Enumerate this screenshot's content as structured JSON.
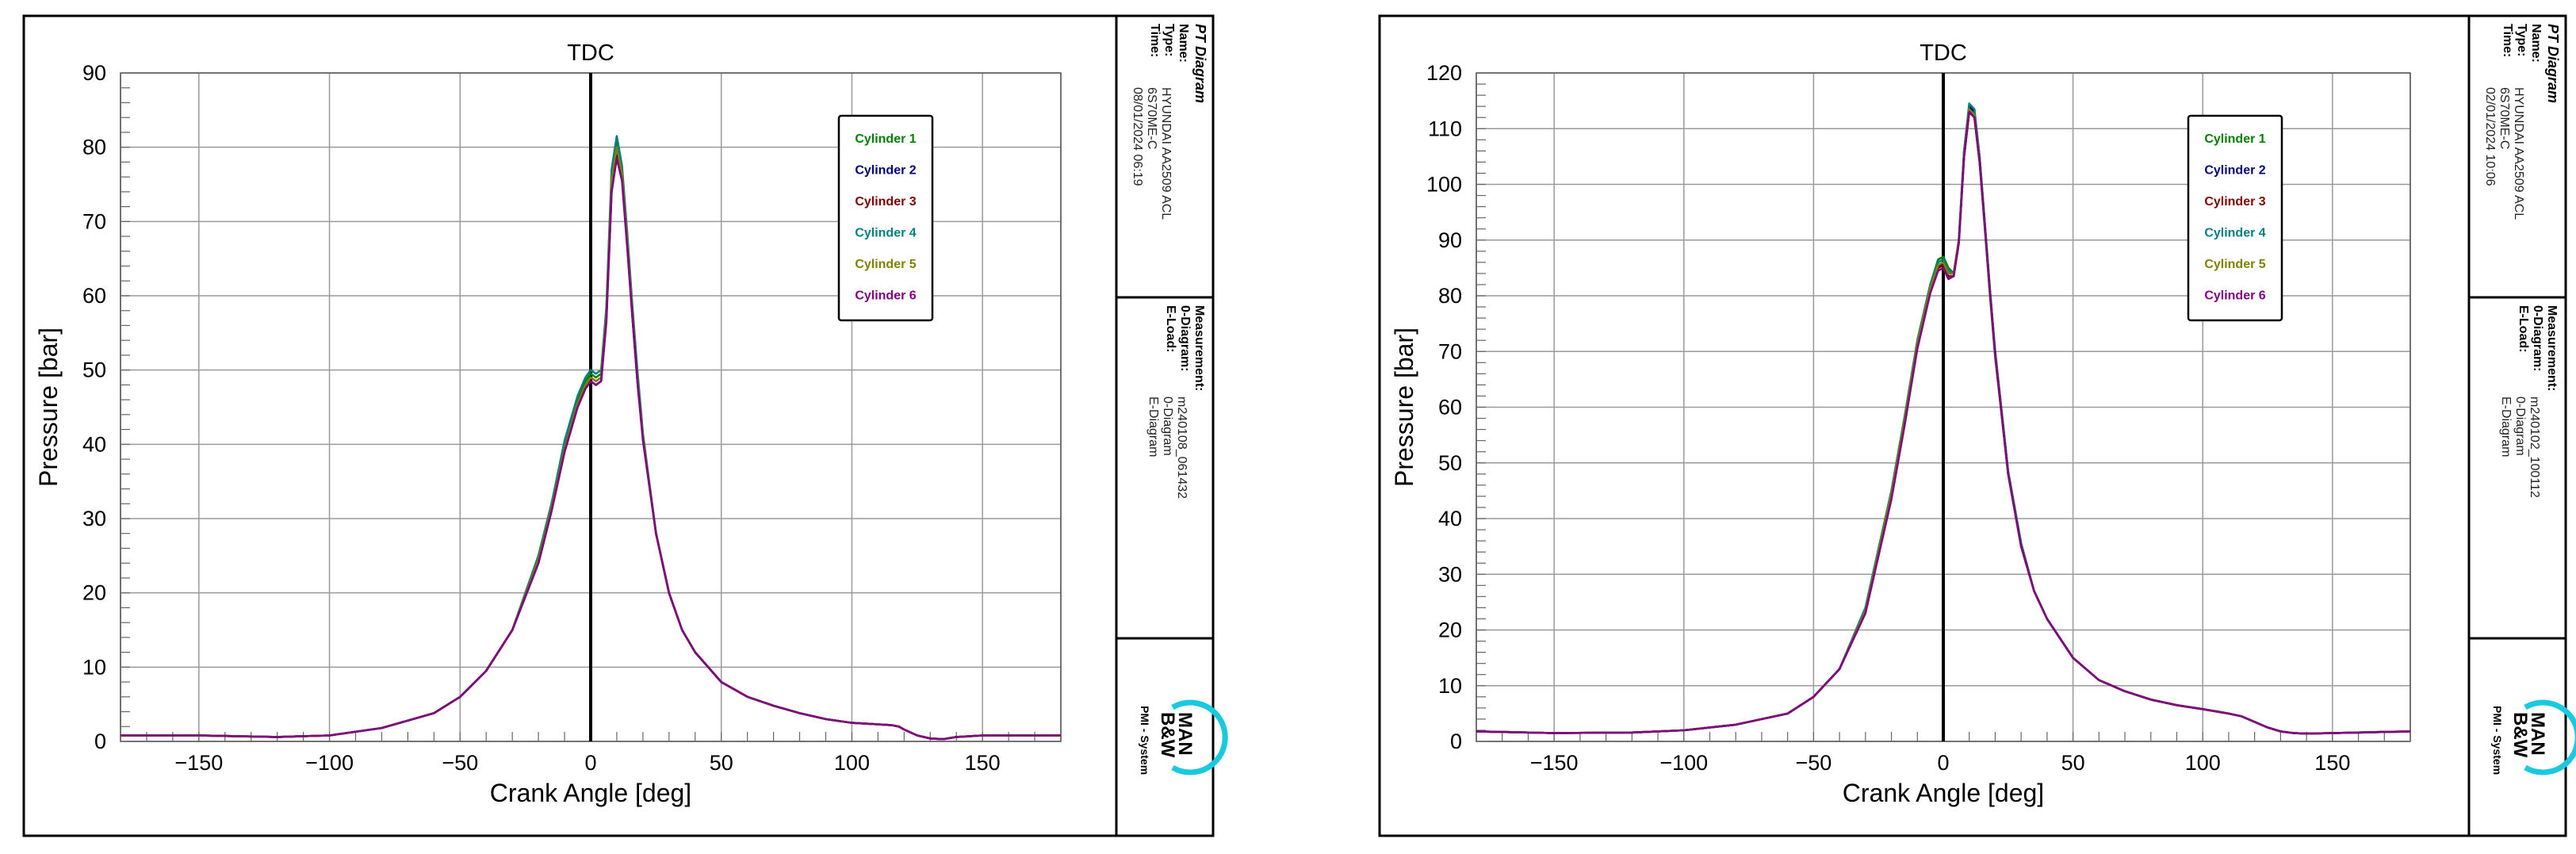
{
  "chart_data": [
    {
      "type": "line",
      "marker": "TDC",
      "xlabel": "Crank Angle [deg]",
      "ylabel": "Pressure [bar]",
      "xlim": [
        -180,
        180
      ],
      "ylim": [
        0,
        90
      ],
      "xticks": [
        -150,
        -100,
        -50,
        0,
        50,
        100,
        150
      ],
      "yticks": [
        0,
        10,
        20,
        30,
        40,
        50,
        60,
        70,
        80,
        90
      ],
      "grid": true,
      "legend_position": "top-right",
      "x": [
        -180,
        -150,
        -120,
        -100,
        -80,
        -60,
        -50,
        -40,
        -30,
        -20,
        -15,
        -10,
        -5,
        -2,
        0,
        2,
        4,
        6,
        8,
        10,
        12,
        14,
        16,
        18,
        20,
        25,
        30,
        35,
        40,
        50,
        60,
        70,
        80,
        90,
        100,
        110,
        115,
        118,
        120,
        125,
        130,
        135,
        140,
        150,
        160,
        170,
        180
      ],
      "series": [
        {
          "name": "Cylinder 1",
          "color": "#008000",
          "y": [
            0.8,
            0.8,
            0.6,
            0.8,
            1.8,
            3.8,
            6,
            9.5,
            15,
            25,
            32,
            40,
            46,
            48.5,
            49.5,
            49,
            49.5,
            58,
            76,
            81,
            77,
            68,
            58,
            49,
            41,
            28,
            20,
            15,
            12,
            8,
            6,
            4.8,
            3.8,
            3,
            2.5,
            2.3,
            2.2,
            2.0,
            1.6,
            0.8,
            0.4,
            0.3,
            0.6,
            0.8,
            0.8,
            0.8,
            0.8
          ]
        },
        {
          "name": "Cylinder 2",
          "color": "#000080",
          "y": [
            0.8,
            0.8,
            0.6,
            0.8,
            1.8,
            3.8,
            6,
            9.5,
            15,
            24,
            31,
            39,
            45,
            47.5,
            48.5,
            48,
            48.5,
            57,
            74,
            79,
            76,
            67,
            57,
            48,
            41,
            28,
            20,
            15,
            12,
            8,
            6,
            4.8,
            3.8,
            3,
            2.5,
            2.3,
            2.2,
            2.0,
            1.6,
            0.8,
            0.4,
            0.3,
            0.6,
            0.8,
            0.8,
            0.8,
            0.8
          ]
        },
        {
          "name": "Cylinder 3",
          "color": "#800000",
          "y": [
            0.8,
            0.8,
            0.6,
            0.8,
            1.8,
            3.8,
            6,
            9.5,
            15,
            24.5,
            31.5,
            39.5,
            45.5,
            48,
            49,
            48.5,
            49,
            57.5,
            75,
            80,
            76.5,
            67.5,
            57.5,
            48.5,
            41,
            28,
            20,
            15,
            12,
            8,
            6,
            4.8,
            3.8,
            3,
            2.5,
            2.3,
            2.2,
            2.0,
            1.6,
            0.8,
            0.4,
            0.3,
            0.6,
            0.8,
            0.8,
            0.8,
            0.8
          ]
        },
        {
          "name": "Cylinder 4",
          "color": "#008080",
          "y": [
            0.8,
            0.8,
            0.6,
            0.8,
            1.8,
            3.8,
            6,
            9.5,
            15,
            25,
            32,
            40.5,
            46.5,
            49,
            50,
            49.5,
            50,
            58.5,
            77,
            81.5,
            77.5,
            68.5,
            58.5,
            49.5,
            41.5,
            28,
            20,
            15,
            12,
            8,
            6,
            4.8,
            3.8,
            3,
            2.5,
            2.3,
            2.2,
            2.0,
            1.6,
            0.8,
            0.4,
            0.3,
            0.6,
            0.8,
            0.8,
            0.8,
            0.8
          ]
        },
        {
          "name": "Cylinder 5",
          "color": "#808000",
          "y": [
            0.8,
            0.8,
            0.6,
            0.8,
            1.8,
            3.8,
            6,
            9.5,
            15,
            24.5,
            31.5,
            39.5,
            45.5,
            48,
            49,
            48.5,
            49,
            57.5,
            75.5,
            80,
            76.5,
            67.5,
            57.5,
            48.5,
            41,
            28,
            20,
            15,
            12,
            8,
            6,
            4.8,
            3.8,
            3,
            2.5,
            2.3,
            2.2,
            2.0,
            1.6,
            0.8,
            0.4,
            0.3,
            0.6,
            0.8,
            0.8,
            0.8,
            0.8
          ]
        },
        {
          "name": "Cylinder 6",
          "color": "#800080",
          "y": [
            0.8,
            0.8,
            0.6,
            0.8,
            1.8,
            3.8,
            6,
            9.5,
            15,
            24,
            31,
            39,
            45,
            47.5,
            48.5,
            48,
            48.5,
            56.5,
            74,
            78.5,
            75.5,
            66.5,
            57,
            48,
            40.5,
            28,
            20,
            15,
            12,
            8,
            6,
            4.8,
            3.8,
            3,
            2.5,
            2.3,
            2.2,
            2.0,
            1.6,
            0.8,
            0.4,
            0.3,
            0.6,
            0.8,
            0.8,
            0.8,
            0.8
          ]
        }
      ]
    },
    {
      "type": "line",
      "marker": "TDC",
      "xlabel": "Crank Angle [deg]",
      "ylabel": "Pressure [bar]",
      "xlim": [
        -180,
        180
      ],
      "ylim": [
        0,
        120
      ],
      "xticks": [
        -150,
        -100,
        -50,
        0,
        50,
        100,
        150
      ],
      "yticks": [
        0,
        10,
        20,
        30,
        40,
        50,
        60,
        70,
        80,
        90,
        100,
        110,
        120
      ],
      "grid": true,
      "legend_position": "top-right",
      "x": [
        -180,
        -150,
        -120,
        -100,
        -80,
        -60,
        -50,
        -40,
        -30,
        -20,
        -15,
        -10,
        -5,
        -2,
        0,
        2,
        4,
        6,
        8,
        10,
        12,
        14,
        16,
        18,
        20,
        25,
        30,
        35,
        40,
        50,
        60,
        70,
        80,
        90,
        100,
        110,
        115,
        120,
        125,
        130,
        135,
        140,
        150,
        160,
        170,
        180
      ],
      "series": [
        {
          "name": "Cylinder 1",
          "color": "#008000",
          "y": [
            1.8,
            1.5,
            1.6,
            2,
            3,
            5,
            8,
            13,
            24,
            45,
            58,
            72,
            82,
            86.5,
            87,
            85,
            84,
            90,
            105,
            113,
            112,
            104,
            92,
            80,
            69,
            48,
            35,
            27,
            22,
            15,
            11,
            9,
            7.5,
            6.5,
            5.8,
            5,
            4.5,
            3.5,
            2.5,
            1.8,
            1.5,
            1.4,
            1.5,
            1.6,
            1.7,
            1.8
          ]
        },
        {
          "name": "Cylinder 2",
          "color": "#000080",
          "y": [
            1.8,
            1.5,
            1.6,
            2,
            3,
            5,
            8,
            13,
            23.5,
            44,
            57,
            71,
            81,
            85,
            86,
            84,
            84,
            90,
            106,
            114,
            113,
            105,
            93,
            81,
            70,
            48.5,
            35.5,
            27,
            22,
            15,
            11,
            9,
            7.5,
            6.5,
            5.8,
            5,
            4.5,
            3.5,
            2.5,
            1.8,
            1.5,
            1.4,
            1.5,
            1.6,
            1.7,
            1.8
          ]
        },
        {
          "name": "Cylinder 3",
          "color": "#800000",
          "y": [
            1.8,
            1.5,
            1.6,
            2,
            3,
            5,
            8,
            13,
            23.5,
            44,
            57,
            71,
            81,
            85,
            85.5,
            83.5,
            83.5,
            89.5,
            105,
            113,
            112,
            104,
            92.5,
            80.5,
            69.5,
            48,
            35,
            27,
            22,
            15,
            11,
            9,
            7.5,
            6.5,
            5.8,
            5,
            4.5,
            3.5,
            2.5,
            1.8,
            1.5,
            1.4,
            1.5,
            1.6,
            1.7,
            1.8
          ]
        },
        {
          "name": "Cylinder 4",
          "color": "#008080",
          "y": [
            1.8,
            1.5,
            1.6,
            2,
            3,
            5,
            8,
            13,
            24,
            45,
            58,
            72,
            82,
            86,
            86.5,
            84.5,
            84,
            90,
            106,
            114.5,
            113.5,
            105,
            93,
            81,
            70,
            48.5,
            35.5,
            27,
            22,
            15,
            11,
            9,
            7.5,
            6.5,
            5.8,
            5,
            4.5,
            3.5,
            2.5,
            1.8,
            1.5,
            1.4,
            1.5,
            1.6,
            1.7,
            1.8
          ]
        },
        {
          "name": "Cylinder 5",
          "color": "#808000",
          "y": [
            1.8,
            1.5,
            1.6,
            2,
            3,
            5,
            8,
            13,
            23.5,
            44.5,
            57.5,
            71.5,
            81.5,
            85.5,
            86,
            84,
            84,
            90,
            105.5,
            113.5,
            112.5,
            104.5,
            92.5,
            80.5,
            69.5,
            48,
            35,
            27,
            22,
            15,
            11,
            9,
            7.5,
            6.5,
            5.8,
            5,
            4.5,
            3.5,
            2.5,
            1.8,
            1.5,
            1.4,
            1.5,
            1.6,
            1.7,
            1.8
          ]
        },
        {
          "name": "Cylinder 6",
          "color": "#800080",
          "y": [
            1.8,
            1.5,
            1.6,
            2,
            3,
            5,
            8,
            13,
            23,
            43.5,
            56.5,
            70.5,
            80.5,
            84.5,
            85,
            83,
            83.5,
            89.5,
            105,
            113,
            112,
            104,
            92.5,
            80.5,
            69.5,
            48,
            35,
            27,
            22,
            15,
            11,
            9,
            7.5,
            6.5,
            5.8,
            5,
            4.5,
            3.5,
            2.5,
            1.8,
            1.5,
            1.4,
            1.5,
            1.6,
            1.7,
            1.8
          ]
        }
      ]
    }
  ],
  "panels": [
    {
      "diagram_title": "PT Diagram",
      "name_key": "Name:",
      "name_val": "HYUNDAI AA2509 ACL",
      "type_key": "Type:",
      "type_val": "6S70ME-C",
      "time_key": "Time:",
      "time_val": "08/01/2024 06:19",
      "meas_key": "Measurement:",
      "meas_val": "m240108_061432",
      "odiag_key": "0-Diagram:",
      "odiag_val": "0-Diagram",
      "eload_key": "E-Load:",
      "eload_val": "E-Diagram",
      "logo_line1": "MAN",
      "logo_line2": "B&W",
      "pmi_label": "PMI - System"
    },
    {
      "diagram_title": "PT Diagram",
      "name_key": "Name:",
      "name_val": "HYUNDAI AA2509 ACL",
      "type_key": "Type:",
      "type_val": "6S70ME-C",
      "time_key": "Time:",
      "time_val": "02/01/2024 10:06",
      "meas_key": "Measurement:",
      "meas_val": "m240102_100112",
      "odiag_key": "0-Diagram:",
      "odiag_val": "0-Diagram",
      "eload_key": "E-Load:",
      "eload_val": "E-Diagram",
      "logo_line1": "MAN",
      "logo_line2": "B&W",
      "pmi_label": "PMI - System"
    }
  ]
}
